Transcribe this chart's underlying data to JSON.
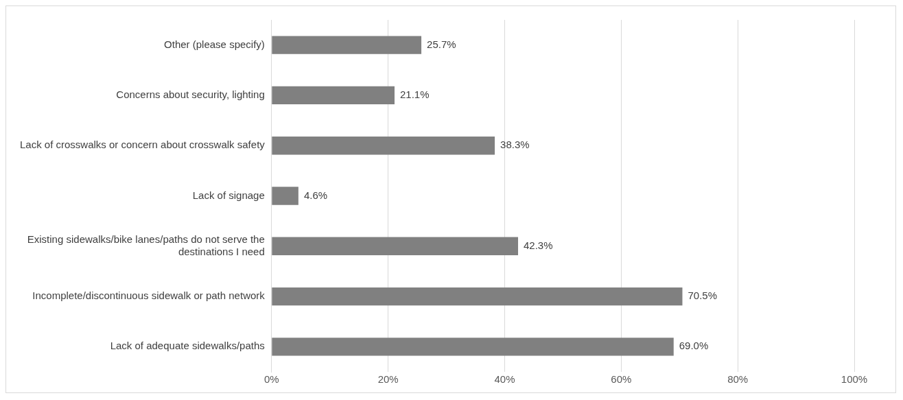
{
  "chart_data": {
    "type": "bar",
    "orientation": "horizontal",
    "color": "#808080",
    "categories": [
      "Other (please specify)",
      "Concerns about security, lighting",
      "Lack of crosswalks or concern about crosswalk safety",
      "Lack of signage",
      "Existing sidewalks/bike lanes/paths do not serve the destinations I need",
      "Incomplete/discontinuous sidewalk or path network",
      "Lack of adequate sidewalks/paths"
    ],
    "values": [
      25.7,
      21.1,
      38.3,
      4.6,
      42.3,
      70.5,
      69.0
    ],
    "value_labels": [
      "25.7%",
      "21.1%",
      "38.3%",
      "4.6%",
      "42.3%",
      "70.5%",
      "69.0%"
    ],
    "xlim": [
      0,
      100
    ],
    "xticks": [
      {
        "value": 0,
        "label": "0%"
      },
      {
        "value": 20,
        "label": "20%"
      },
      {
        "value": 40,
        "label": "40%"
      },
      {
        "value": 60,
        "label": "60%"
      },
      {
        "value": 80,
        "label": "80%"
      },
      {
        "value": 100,
        "label": "100%"
      }
    ],
    "grid": "x",
    "legend": false
  }
}
